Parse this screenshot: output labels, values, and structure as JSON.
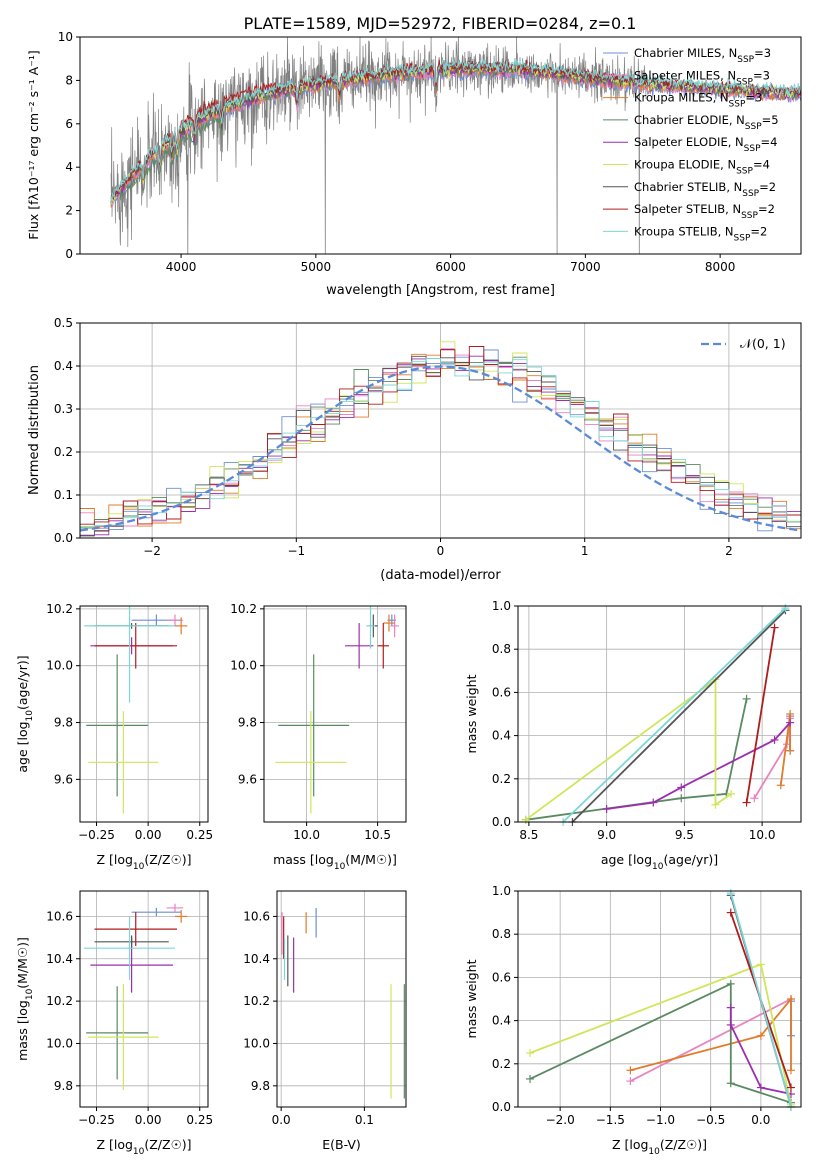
{
  "figure": {
    "title": "PLATE=1589, MJD=52972, FIBERID=0284, z=0.1"
  },
  "colors": {
    "Chabrier MILES": "#6d8fd6",
    "Salpeter MILES": "#e983c1",
    "Kroupa MILES": "#e07b2b",
    "Chabrier ELODIE": "#5a8a62",
    "Salpeter ELODIE": "#9b2fae",
    "Kroupa ELODIE": "#cfe65a",
    "Chabrier STELIB": "#555555",
    "Salpeter STELIB": "#b01c1c",
    "Kroupa STELIB": "#7dd6d6",
    "data": "#808080"
  },
  "chart_data": [
    {
      "id": "spectrum",
      "type": "line",
      "title": "PLATE=1589, MJD=52972, FIBERID=0284, z=0.1",
      "xlabel": "wavelength [Angstrom, rest frame]",
      "ylabel": "Flux [fλ10⁻¹⁷ erg cm⁻² s⁻¹ A⁻¹]",
      "xlim": [
        3250,
        8600
      ],
      "ylim": [
        0,
        10
      ],
      "xticks": [
        4000,
        5000,
        6000,
        7000,
        8000
      ],
      "yticks": [
        0,
        2,
        4,
        6,
        8,
        10
      ],
      "grid": false,
      "legend": "upper-right",
      "legend_entries": [
        {
          "name": "Chabrier MILES",
          "label_main": "Chabrier MILES, N",
          "label_sub": "SSP",
          "label_end": "=3"
        },
        {
          "name": "Salpeter MILES",
          "label_main": "Salpeter MILES, N",
          "label_sub": "SSP",
          "label_end": "=3"
        },
        {
          "name": "Kroupa MILES",
          "label_main": "Kroupa MILES, N",
          "label_sub": "SSP",
          "label_end": "=3"
        },
        {
          "name": "Chabrier ELODIE",
          "label_main": "Chabrier ELODIE, N",
          "label_sub": "SSP",
          "label_end": "=5"
        },
        {
          "name": "Salpeter ELODIE",
          "label_main": "Salpeter ELODIE, N",
          "label_sub": "SSP",
          "label_end": "=4"
        },
        {
          "name": "Kroupa ELODIE",
          "label_main": "Kroupa ELODIE, N",
          "label_sub": "SSP",
          "label_end": "=4"
        },
        {
          "name": "Chabrier STELIB",
          "label_main": "Chabrier STELIB, N",
          "label_sub": "SSP",
          "label_end": "=2"
        },
        {
          "name": "Salpeter STELIB",
          "label_main": "Salpeter STELIB, N",
          "label_sub": "SSP",
          "label_end": "=2"
        },
        {
          "name": "Kroupa STELIB",
          "label_main": "Kroupa STELIB, N",
          "label_sub": "SSP",
          "label_end": "=2"
        }
      ],
      "continuum_knots": [
        [
          3480,
          2.4
        ],
        [
          3600,
          3.4
        ],
        [
          3800,
          4.6
        ],
        [
          4000,
          5.6
        ],
        [
          4200,
          6.4
        ],
        [
          4500,
          7.1
        ],
        [
          4800,
          7.6
        ],
        [
          5200,
          8.0
        ],
        [
          5600,
          8.3
        ],
        [
          6000,
          8.5
        ],
        [
          6500,
          8.5
        ],
        [
          7000,
          8.1
        ],
        [
          7500,
          7.8
        ],
        [
          8000,
          7.6
        ],
        [
          8500,
          7.4
        ]
      ],
      "data_noise_knots": [
        [
          3480,
          1.2
        ],
        [
          4500,
          1.0
        ],
        [
          5500,
          0.7
        ],
        [
          6500,
          0.5
        ],
        [
          7500,
          0.5
        ],
        [
          8500,
          0.4
        ]
      ],
      "model_range": [
        3480,
        8600
      ],
      "data_range": [
        3480,
        7450
      ],
      "absorption_dips": [
        3720,
        3840,
        3935,
        3970,
        4100,
        4300,
        4860,
        5175,
        5890
      ],
      "deep_data_drops": [
        4050,
        5070,
        6790,
        7400
      ]
    },
    {
      "id": "residuals",
      "type": "histogram",
      "xlabel": "(data-model)/error",
      "ylabel": "Normed distribution",
      "xlim": [
        -2.5,
        2.5
      ],
      "ylim": [
        0,
        0.5
      ],
      "xticks": [
        -2,
        -1,
        0,
        1,
        2
      ],
      "yticks": [
        0,
        0.1,
        0.2,
        0.3,
        0.4,
        0.5
      ],
      "grid": true,
      "legend": "upper-right",
      "legend_label": "𝒩(0, 1)",
      "bin_width": 0.1,
      "bins_from": -2.5,
      "bins_to": 2.5
    },
    {
      "id": "age-vs-Z",
      "type": "errorbar",
      "xlabel_main": "Z [log",
      "xlabel_sub": "10",
      "xlabel_end": "(Z/Z☉)]",
      "ylabel_main": "age  [log",
      "ylabel_sub": "10",
      "ylabel_end": "(age/yr)]",
      "xlim": [
        -0.33,
        0.29
      ],
      "ylim": [
        9.45,
        10.21
      ],
      "xticks": [
        -0.25,
        0.0,
        0.25
      ],
      "yticks": [
        9.6,
        9.8,
        10.0,
        10.2
      ],
      "grid": true,
      "points": [
        {
          "name": "Chabrier MILES",
          "x": 0.04,
          "y": 10.16,
          "xerr": 0.12,
          "yerr": 0.02
        },
        {
          "name": "Salpeter MILES",
          "x": 0.13,
          "y": 10.16,
          "xerr": 0.04,
          "yerr": 0.02
        },
        {
          "name": "Kroupa MILES",
          "x": 0.16,
          "y": 10.14,
          "xerr": 0.03,
          "yerr": 0.03
        },
        {
          "name": "Chabrier ELODIE",
          "x": -0.15,
          "y": 9.79,
          "xerr": 0.15,
          "yerr": 0.25
        },
        {
          "name": "Salpeter ELODIE",
          "x": -0.08,
          "y": 10.07,
          "xerr": 0.2,
          "yerr": 0.03
        },
        {
          "name": "Kroupa ELODIE",
          "x": -0.12,
          "y": 9.66,
          "xerr": 0.17,
          "yerr": 0.18
        },
        {
          "name": "Chabrier STELIB",
          "x": -0.08,
          "y": 10.14,
          "xerr": 0.18,
          "yerr": 0.01
        },
        {
          "name": "Salpeter STELIB",
          "x": -0.06,
          "y": 10.07,
          "xerr": 0.2,
          "yerr": 0.08
        },
        {
          "name": "Kroupa STELIB",
          "x": -0.09,
          "y": 10.14,
          "xerr": 0.22,
          "yerr": 0.27
        }
      ]
    },
    {
      "id": "age-vs-mass",
      "type": "errorbar",
      "xlabel_main": "mass [log",
      "xlabel_sub": "10",
      "xlabel_end": "(M/M☉)]",
      "ylabel_main": "",
      "ylabel_sub": "",
      "ylabel_end": "",
      "xlim": [
        9.7,
        10.7
      ],
      "ylim": [
        9.45,
        10.21
      ],
      "xticks": [
        10.0,
        10.5
      ],
      "yticks": [
        9.6,
        9.8,
        10.0,
        10.2
      ],
      "grid": true,
      "points": [
        {
          "name": "Chabrier MILES",
          "x": 10.6,
          "y": 10.16,
          "xerr": 0.03,
          "yerr": 0.02
        },
        {
          "name": "Salpeter MILES",
          "x": 10.62,
          "y": 10.14,
          "xerr": 0.03,
          "yerr": 0.04
        },
        {
          "name": "Kroupa MILES",
          "x": 10.58,
          "y": 10.15,
          "xerr": 0.04,
          "yerr": 0.03
        },
        {
          "name": "Chabrier ELODIE",
          "x": 10.05,
          "y": 9.79,
          "xerr": 0.25,
          "yerr": 0.25
        },
        {
          "name": "Salpeter ELODIE",
          "x": 10.37,
          "y": 10.07,
          "xerr": 0.1,
          "yerr": 0.08
        },
        {
          "name": "Kroupa ELODIE",
          "x": 10.03,
          "y": 9.66,
          "xerr": 0.25,
          "yerr": 0.18
        },
        {
          "name": "Chabrier STELIB",
          "x": 10.47,
          "y": 10.14,
          "xerr": 0.03,
          "yerr": 0.04
        },
        {
          "name": "Salpeter STELIB",
          "x": 10.54,
          "y": 10.07,
          "xerr": 0.04,
          "yerr": 0.08
        },
        {
          "name": "Kroupa STELIB",
          "x": 10.45,
          "y": 10.14,
          "xerr": 0.03,
          "yerr": 0.08
        }
      ]
    },
    {
      "id": "weight-vs-age",
      "type": "line",
      "xlabel_main": "age  [log",
      "xlabel_sub": "10",
      "xlabel_end": "(age/yr)]",
      "ylabel": "mass weight",
      "xlim": [
        8.43,
        10.25
      ],
      "ylim": [
        0,
        1.0
      ],
      "xticks": [
        8.5,
        9.0,
        9.5,
        10.0
      ],
      "yticks": [
        0.0,
        0.2,
        0.4,
        0.6,
        0.8,
        1.0
      ],
      "grid": true,
      "series": [
        {
          "name": "Chabrier MILES",
          "x": [
            10.18,
            10.18
          ],
          "y": [
            0.49,
            0.33
          ]
        },
        {
          "name": "Salpeter MILES",
          "x": [
            9.95,
            10.16,
            10.18
          ],
          "y": [
            0.11,
            0.36,
            0.48
          ]
        },
        {
          "name": "Kroupa MILES",
          "x": [
            10.12,
            10.18,
            10.18
          ],
          "y": [
            0.17,
            0.5,
            0.33
          ]
        },
        {
          "name": "Chabrier ELODIE",
          "x": [
            8.48,
            9.48,
            9.77,
            9.9
          ],
          "y": [
            0.01,
            0.11,
            0.13,
            0.57
          ]
        },
        {
          "name": "Salpeter ELODIE",
          "x": [
            9.0,
            9.3,
            9.48,
            10.08,
            10.18
          ],
          "y": [
            0.06,
            0.09,
            0.16,
            0.38,
            0.46
          ]
        },
        {
          "name": "Kroupa ELODIE",
          "x": [
            8.48,
            9.7,
            9.7,
            9.8
          ],
          "y": [
            0.01,
            0.66,
            0.08,
            0.13
          ]
        },
        {
          "name": "Chabrier STELIB",
          "x": [
            8.78,
            10.15
          ],
          "y": [
            0.0,
            0.98
          ]
        },
        {
          "name": "Salpeter STELIB",
          "x": [
            9.9,
            10.08
          ],
          "y": [
            0.09,
            0.9
          ]
        },
        {
          "name": "Kroupa STELIB",
          "x": [
            8.72,
            10.15
          ],
          "y": [
            0.0,
            0.99
          ]
        }
      ]
    },
    {
      "id": "mass-vs-Z",
      "type": "errorbar",
      "xlabel_main": "Z [log",
      "xlabel_sub": "10",
      "xlabel_end": "(Z/Z☉)]",
      "ylabel_main": "mass [log",
      "ylabel_sub": "10",
      "ylabel_end": "(M/M☉)]",
      "xlim": [
        -0.33,
        0.29
      ],
      "ylim": [
        9.7,
        10.72
      ],
      "xticks": [
        -0.25,
        0.0,
        0.25
      ],
      "yticks": [
        9.8,
        10.0,
        10.2,
        10.4,
        10.6
      ],
      "grid": true,
      "points": [
        {
          "name": "Chabrier MILES",
          "x": 0.04,
          "y": 10.62,
          "xerr": 0.12,
          "yerr": 0.02
        },
        {
          "name": "Salpeter MILES",
          "x": 0.13,
          "y": 10.64,
          "xerr": 0.04,
          "yerr": 0.02
        },
        {
          "name": "Kroupa MILES",
          "x": 0.16,
          "y": 10.6,
          "xerr": 0.03,
          "yerr": 0.03
        },
        {
          "name": "Chabrier ELODIE",
          "x": -0.15,
          "y": 10.05,
          "xerr": 0.15,
          "yerr": 0.22
        },
        {
          "name": "Salpeter ELODIE",
          "x": -0.08,
          "y": 10.37,
          "xerr": 0.2,
          "yerr": 0.13
        },
        {
          "name": "Kroupa ELODIE",
          "x": -0.12,
          "y": 10.03,
          "xerr": 0.17,
          "yerr": 0.25
        },
        {
          "name": "Chabrier STELIB",
          "x": -0.08,
          "y": 10.48,
          "xerr": 0.18,
          "yerr": 0.03
        },
        {
          "name": "Salpeter STELIB",
          "x": -0.06,
          "y": 10.54,
          "xerr": 0.2,
          "yerr": 0.08
        },
        {
          "name": "Kroupa STELIB",
          "x": -0.09,
          "y": 10.45,
          "xerr": 0.22,
          "yerr": 0.15
        }
      ]
    },
    {
      "id": "mass-vs-ebv",
      "type": "errorbar",
      "xlabel_main": "E(B-V)",
      "xlabel_sub": "",
      "xlabel_end": "",
      "ylabel_main": "",
      "ylabel_sub": "",
      "ylabel_end": "",
      "xlim": [
        -0.005,
        0.15
      ],
      "ylim": [
        9.7,
        10.72
      ],
      "xticks": [
        0.0,
        0.1
      ],
      "yticks": [
        9.8,
        10.0,
        10.2,
        10.4,
        10.6
      ],
      "grid": true,
      "points": [
        {
          "name": "Chabrier MILES",
          "x": 0.042,
          "y": 10.57,
          "xerr": 0,
          "yerr": 0.07
        },
        {
          "name": "Salpeter MILES",
          "x": 0.001,
          "y": 10.52,
          "xerr": 0,
          "yerr": 0.1
        },
        {
          "name": "Kroupa MILES",
          "x": 0.03,
          "y": 10.57,
          "xerr": 0,
          "yerr": 0.05
        },
        {
          "name": "Chabrier ELODIE",
          "x": 0.148,
          "y": 10.01,
          "xerr": 0,
          "yerr": 0.27
        },
        {
          "name": "Salpeter ELODIE",
          "x": 0.015,
          "y": 10.37,
          "xerr": 0,
          "yerr": 0.13
        },
        {
          "name": "Kroupa ELODIE",
          "x": 0.132,
          "y": 10.01,
          "xerr": 0,
          "yerr": 0.27
        },
        {
          "name": "Chabrier STELIB",
          "x": 0.008,
          "y": 10.39,
          "xerr": 0,
          "yerr": 0.12
        },
        {
          "name": "Salpeter STELIB",
          "x": 0.003,
          "y": 10.5,
          "xerr": 0,
          "yerr": 0.1
        },
        {
          "name": "Kroupa STELIB",
          "x": 0.004,
          "y": 10.4,
          "xerr": 0,
          "yerr": 0.1
        }
      ]
    },
    {
      "id": "weight-vs-Z",
      "type": "line",
      "xlabel_main": "Z [log",
      "xlabel_sub": "10",
      "xlabel_end": "(Z/Z☉)]",
      "ylabel": "mass weight",
      "xlim": [
        -2.42,
        0.4
      ],
      "ylim": [
        0,
        1.0
      ],
      "xticks": [
        -2.0,
        -1.5,
        -1.0,
        -0.5,
        0.0
      ],
      "yticks": [
        0.0,
        0.2,
        0.4,
        0.6,
        0.8,
        1.0
      ],
      "grid": true,
      "series": [
        {
          "name": "Chabrier MILES",
          "x": [
            0.3,
            0.3
          ],
          "y": [
            0.49,
            0.33
          ]
        },
        {
          "name": "Salpeter MILES",
          "x": [
            -1.3,
            0.3
          ],
          "y": [
            0.12,
            0.5
          ]
        },
        {
          "name": "Kroupa MILES",
          "x": [
            -1.3,
            0.0,
            0.3,
            0.3
          ],
          "y": [
            0.17,
            0.33,
            0.5,
            0.17
          ]
        },
        {
          "name": "Chabrier ELODIE",
          "x": [
            -2.3,
            -0.3,
            -0.3,
            0.3
          ],
          "y": [
            0.13,
            0.57,
            0.11,
            0.02
          ]
        },
        {
          "name": "Salpeter ELODIE",
          "x": [
            -0.3,
            -0.3,
            0.0,
            0.3
          ],
          "y": [
            0.46,
            0.38,
            0.09,
            0.06
          ]
        },
        {
          "name": "Kroupa ELODIE",
          "x": [
            -2.3,
            0.0,
            0.3
          ],
          "y": [
            0.25,
            0.66,
            0.01
          ]
        },
        {
          "name": "Chabrier STELIB",
          "x": [
            -0.3,
            0.3
          ],
          "y": [
            0.98,
            0.0
          ]
        },
        {
          "name": "Salpeter STELIB",
          "x": [
            -0.3,
            0.3
          ],
          "y": [
            0.9,
            0.09
          ]
        },
        {
          "name": "Kroupa STELIB",
          "x": [
            -0.3,
            0.3
          ],
          "y": [
            0.99,
            0.0
          ]
        }
      ]
    }
  ]
}
